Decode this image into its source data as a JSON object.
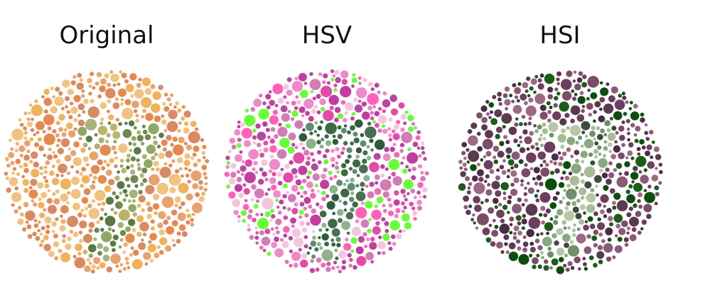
{
  "panels": [
    {
      "title": "Original",
      "palette": {
        "background": [
          "#e9a26e",
          "#f0b25c",
          "#d98a63",
          "#f2c280",
          "#e7894f"
        ],
        "figure": [
          "#6e8a4d",
          "#8fa867",
          "#b7b56a",
          "#597a45",
          "#a7b27a"
        ]
      },
      "icon": "ishihara-plate-original"
    },
    {
      "title": "HSV",
      "palette": {
        "background": [
          "#c23d9f",
          "#f089c7",
          "#b9489d",
          "#ff60b8",
          "#d27cb7",
          "#f5c4dd",
          "#64ff34",
          "#e24ba6"
        ],
        "figure": [
          "#2f5b3d",
          "#476f54",
          "#5f8b6f",
          "#8db28c",
          "#3c6a43"
        ]
      },
      "icon": "ishihara-plate-hsv"
    },
    {
      "title": "HSI",
      "palette": {
        "background": [
          "#4c2b44",
          "#6d3f5e",
          "#8b5a78",
          "#5b3a4f",
          "#9c6a82",
          "#7c4d67",
          "#1a5d1b",
          "#0d4e0d"
        ],
        "figure": [
          "#88aa7f",
          "#6d8f6a",
          "#b7c7a7",
          "#3e4b3e",
          "#a6bd97"
        ]
      },
      "icon": "ishihara-plate-hsi"
    }
  ]
}
